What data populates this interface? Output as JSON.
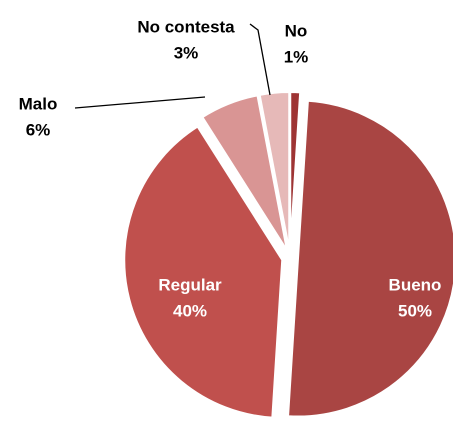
{
  "chart_data": {
    "type": "pie",
    "categories": [
      "No",
      "Bueno",
      "Regular",
      "Malo",
      "No contesta"
    ],
    "values": [
      1,
      50,
      40,
      6,
      3
    ],
    "value_labels": [
      "1%",
      "50%",
      "40%",
      "6%",
      "3%"
    ],
    "colors": [
      "#9e3434",
      "#a94543",
      "#c0504d",
      "#d99594",
      "#e6b9b8"
    ]
  }
}
